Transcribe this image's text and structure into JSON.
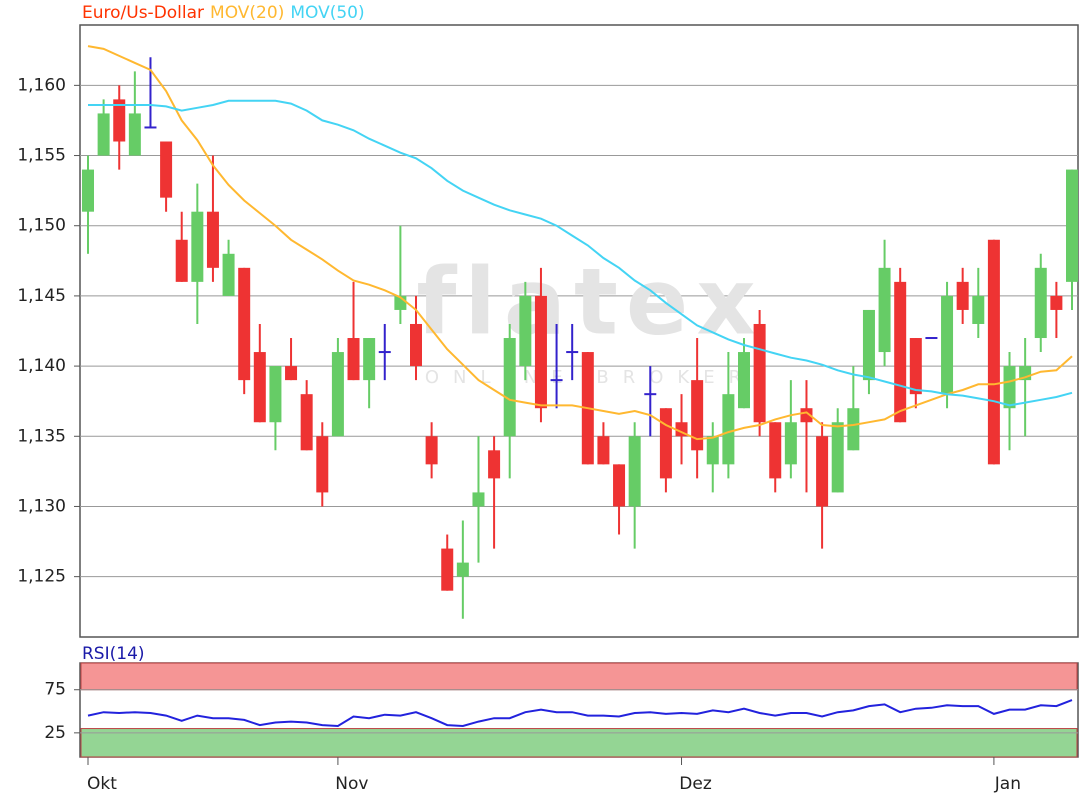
{
  "chart_data": [
    {
      "type": "candlestick",
      "categories": [
        "Okt",
        null,
        null,
        null,
        null,
        null,
        null,
        null,
        null,
        null,
        null,
        null,
        null,
        null,
        null,
        null,
        "Nov",
        null,
        null,
        null,
        null,
        null,
        null,
        null,
        null,
        null,
        null,
        null,
        null,
        null,
        null,
        null,
        null,
        null,
        null,
        null,
        null,
        null,
        "Dez",
        null,
        null,
        null,
        null,
        null,
        null,
        null,
        null,
        null,
        null,
        null,
        null,
        null,
        null,
        null,
        null,
        null,
        null,
        null,
        "Jan",
        null,
        null,
        null,
        null,
        null
      ],
      "series": [
        {
          "name": "Euro/Us-Dollar",
          "color": "#ff3300",
          "up_color": "#66cc66",
          "down_color": "#ee3333",
          "doji_color": "#3322cc",
          "open": [
            1.151,
            1.155,
            1.159,
            1.155,
            1.157,
            1.156,
            1.149,
            1.146,
            1.151,
            1.145,
            1.147,
            1.141,
            1.136,
            1.14,
            1.138,
            1.135,
            1.135,
            1.142,
            1.139,
            1.141,
            1.144,
            1.143,
            1.135,
            1.127,
            1.125,
            1.13,
            1.134,
            1.135,
            1.14,
            1.145,
            1.139,
            1.141,
            1.141,
            1.135,
            1.133,
            1.13,
            1.138,
            1.137,
            1.136,
            1.139,
            1.133,
            1.133,
            1.137,
            1.143,
            1.136,
            1.133,
            1.137,
            1.135,
            1.131,
            1.134,
            1.139,
            1.141,
            1.146,
            1.142,
            1.142,
            1.138,
            1.146,
            1.143,
            1.149,
            1.137,
            1.139,
            1.142,
            1.145,
            1.146
          ],
          "high": [
            1.155,
            1.159,
            1.16,
            1.161,
            1.162,
            1.156,
            1.151,
            1.153,
            1.155,
            1.149,
            1.147,
            1.143,
            1.14,
            1.142,
            1.139,
            1.136,
            1.142,
            1.146,
            1.142,
            1.143,
            1.15,
            1.145,
            1.136,
            1.128,
            1.129,
            1.135,
            1.135,
            1.143,
            1.146,
            1.147,
            1.143,
            1.143,
            1.141,
            1.136,
            1.133,
            1.136,
            1.14,
            1.137,
            1.138,
            1.142,
            1.136,
            1.141,
            1.142,
            1.144,
            1.136,
            1.139,
            1.139,
            1.136,
            1.137,
            1.14,
            1.144,
            1.149,
            1.147,
            1.142,
            1.142,
            1.146,
            1.147,
            1.147,
            1.149,
            1.141,
            1.142,
            1.148,
            1.146,
            1.154
          ],
          "low": [
            1.148,
            1.155,
            1.154,
            1.155,
            1.157,
            1.151,
            1.146,
            1.143,
            1.146,
            1.145,
            1.138,
            1.136,
            1.134,
            1.139,
            1.134,
            1.13,
            1.135,
            1.139,
            1.137,
            1.139,
            1.143,
            1.139,
            1.132,
            1.124,
            1.122,
            1.126,
            1.127,
            1.132,
            1.139,
            1.136,
            1.137,
            1.139,
            1.133,
            1.133,
            1.128,
            1.127,
            1.135,
            1.131,
            1.133,
            1.132,
            1.131,
            1.132,
            1.137,
            1.135,
            1.131,
            1.132,
            1.131,
            1.127,
            1.131,
            1.134,
            1.138,
            1.14,
            1.136,
            1.137,
            1.142,
            1.137,
            1.143,
            1.142,
            1.133,
            1.134,
            1.135,
            1.141,
            1.142,
            1.144
          ],
          "close": [
            1.154,
            1.158,
            1.156,
            1.158,
            1.157,
            1.152,
            1.146,
            1.151,
            1.147,
            1.148,
            1.139,
            1.136,
            1.14,
            1.139,
            1.134,
            1.131,
            1.141,
            1.139,
            1.142,
            1.141,
            1.145,
            1.14,
            1.133,
            1.124,
            1.126,
            1.131,
            1.132,
            1.142,
            1.145,
            1.137,
            1.139,
            1.141,
            1.133,
            1.133,
            1.13,
            1.135,
            1.138,
            1.132,
            1.135,
            1.134,
            1.135,
            1.138,
            1.141,
            1.136,
            1.132,
            1.136,
            1.136,
            1.13,
            1.136,
            1.137,
            1.144,
            1.147,
            1.136,
            1.138,
            1.142,
            1.145,
            1.144,
            1.145,
            1.133,
            1.14,
            1.14,
            1.147,
            1.144,
            1.154
          ]
        },
        {
          "name": "MOV(20)",
          "type": "line",
          "color": "#ffb830",
          "values": [
            1.1628,
            1.1626,
            1.1621,
            1.1616,
            1.1611,
            1.1596,
            1.1575,
            1.1561,
            1.1543,
            1.1529,
            1.1518,
            1.1509,
            1.15,
            1.149,
            1.1483,
            1.1476,
            1.1468,
            1.1461,
            1.1458,
            1.1454,
            1.1449,
            1.144,
            1.1426,
            1.1412,
            1.1401,
            1.139,
            1.1383,
            1.1376,
            1.1374,
            1.1372,
            1.1372,
            1.1372,
            1.137,
            1.1368,
            1.1366,
            1.1368,
            1.1365,
            1.1358,
            1.1353,
            1.1348,
            1.1349,
            1.1353,
            1.1356,
            1.1358,
            1.1362,
            1.1365,
            1.1367,
            1.1358,
            1.1357,
            1.1358,
            1.136,
            1.1362,
            1.1368,
            1.1372,
            1.1376,
            1.138,
            1.1383,
            1.1387,
            1.1387,
            1.1389,
            1.1392,
            1.1396,
            1.1397,
            1.1407
          ]
        },
        {
          "name": "MOV(50)",
          "type": "line",
          "color": "#44d4f4",
          "values": [
            1.1586,
            1.1586,
            1.1586,
            1.1586,
            1.1586,
            1.1585,
            1.1582,
            1.1584,
            1.1586,
            1.1589,
            1.1589,
            1.1589,
            1.1589,
            1.1587,
            1.1582,
            1.1575,
            1.1572,
            1.1568,
            1.1562,
            1.1557,
            1.1552,
            1.1548,
            1.1541,
            1.1532,
            1.1525,
            1.152,
            1.1515,
            1.1511,
            1.1508,
            1.1505,
            1.15,
            1.1493,
            1.1486,
            1.1477,
            1.147,
            1.1461,
            1.1454,
            1.1445,
            1.1437,
            1.1429,
            1.1424,
            1.1419,
            1.1415,
            1.1412,
            1.1409,
            1.1406,
            1.1404,
            1.1401,
            1.1397,
            1.1394,
            1.1392,
            1.1389,
            1.1386,
            1.1383,
            1.1382,
            1.138,
            1.1379,
            1.1377,
            1.1375,
            1.1372,
            1.1374,
            1.1376,
            1.1378,
            1.1381
          ]
        }
      ],
      "ylim": [
        1.1207,
        1.1643
      ],
      "yticks": [
        {
          "value": 1.125,
          "label": "1,125"
        },
        {
          "value": 1.13,
          "label": "1,130"
        },
        {
          "value": 1.135,
          "label": "1,135"
        },
        {
          "value": 1.14,
          "label": "1,140"
        },
        {
          "value": 1.145,
          "label": "1,145"
        },
        {
          "value": 1.15,
          "label": "1,150"
        },
        {
          "value": 1.155,
          "label": "1,155"
        },
        {
          "value": 1.16,
          "label": "1,160"
        }
      ],
      "grid": true,
      "watermark": [
        "flatex",
        "ONLINE BROKER"
      ]
    },
    {
      "type": "line",
      "title": "RSI(14)",
      "color": "#2222dd",
      "values": [
        45,
        49,
        48,
        49,
        48,
        45,
        39,
        45,
        42,
        42,
        40,
        34,
        37,
        38,
        37,
        34,
        33,
        44,
        42,
        46,
        45,
        49,
        42,
        34,
        33,
        38,
        42,
        42,
        49,
        52,
        49,
        49,
        45,
        45,
        44,
        48,
        49,
        47,
        48,
        47,
        51,
        49,
        53,
        48,
        45,
        48,
        48,
        44,
        49,
        51,
        56,
        58,
        49,
        53,
        54,
        57,
        56,
        56,
        47,
        52,
        52,
        57,
        56,
        63
      ],
      "ylim": [
        -3,
        106
      ],
      "yticks": [
        75,
        25
      ],
      "grid": true,
      "zones": [
        {
          "from": 75,
          "to": 106,
          "color": "#f48a8a"
        },
        {
          "from": -3,
          "to": 30,
          "color": "#88d088"
        }
      ]
    }
  ]
}
